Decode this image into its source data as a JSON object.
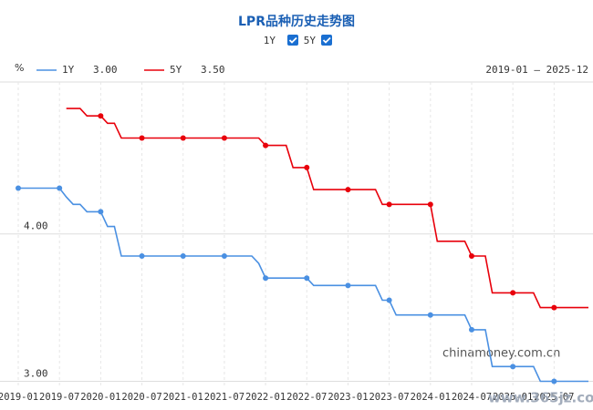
{
  "chart_data": {
    "type": "line",
    "title": "LPR品种历史走势图",
    "toggles": [
      "1Y",
      "5Y"
    ],
    "y_unit": "%",
    "date_range": "2019-01 – 2025-12",
    "watermarks": [
      "chinamoney.com.cn",
      "www.365jz.com"
    ],
    "x": [
      "2019-01",
      "2019-02",
      "2019-03",
      "2019-04",
      "2019-05",
      "2019-06",
      "2019-07",
      "2019-08",
      "2019-09",
      "2019-10",
      "2019-11",
      "2019-12",
      "2020-01",
      "2020-02",
      "2020-03",
      "2020-04",
      "2020-05",
      "2020-06",
      "2020-07",
      "2020-08",
      "2020-09",
      "2020-10",
      "2020-11",
      "2020-12",
      "2021-01",
      "2021-02",
      "2021-03",
      "2021-04",
      "2021-05",
      "2021-06",
      "2021-07",
      "2021-08",
      "2021-09",
      "2021-10",
      "2021-11",
      "2021-12",
      "2022-01",
      "2022-02",
      "2022-03",
      "2022-04",
      "2022-05",
      "2022-06",
      "2022-07",
      "2022-08",
      "2022-09",
      "2022-10",
      "2022-11",
      "2022-12",
      "2023-01",
      "2023-02",
      "2023-03",
      "2023-04",
      "2023-05",
      "2023-06",
      "2023-07",
      "2023-08",
      "2023-09",
      "2023-10",
      "2023-11",
      "2023-12",
      "2024-01",
      "2024-02",
      "2024-03",
      "2024-04",
      "2024-05",
      "2024-06",
      "2024-07",
      "2024-08",
      "2024-09",
      "2024-10",
      "2024-11",
      "2024-12",
      "2025-01",
      "2025-02",
      "2025-03",
      "2025-04",
      "2025-05",
      "2025-06",
      "2025-07",
      "2025-08",
      "2025-09",
      "2025-10",
      "2025-11",
      "2025-12"
    ],
    "series": [
      {
        "name": "1Y",
        "color": "#4a90e2",
        "legend_value": "3.00",
        "values": [
          4.31,
          4.31,
          4.31,
          4.31,
          4.31,
          4.31,
          4.31,
          4.25,
          4.2,
          4.2,
          4.15,
          4.15,
          4.15,
          4.05,
          4.05,
          3.85,
          3.85,
          3.85,
          3.85,
          3.85,
          3.85,
          3.85,
          3.85,
          3.85,
          3.85,
          3.85,
          3.85,
          3.85,
          3.85,
          3.85,
          3.85,
          3.85,
          3.85,
          3.85,
          3.85,
          3.8,
          3.7,
          3.7,
          3.7,
          3.7,
          3.7,
          3.7,
          3.7,
          3.65,
          3.65,
          3.65,
          3.65,
          3.65,
          3.65,
          3.65,
          3.65,
          3.65,
          3.65,
          3.55,
          3.55,
          3.45,
          3.45,
          3.45,
          3.45,
          3.45,
          3.45,
          3.45,
          3.45,
          3.45,
          3.45,
          3.45,
          3.35,
          3.35,
          3.35,
          3.1,
          3.1,
          3.1,
          3.1,
          3.1,
          3.1,
          3.1,
          3,
          3,
          3,
          3,
          3,
          3,
          3,
          3
        ]
      },
      {
        "name": "5Y",
        "color": "#e8000b",
        "legend_value": "3.50",
        "values": [
          null,
          null,
          null,
          null,
          null,
          null,
          null,
          4.85,
          4.85,
          4.85,
          4.8,
          4.8,
          4.8,
          4.75,
          4.75,
          4.65,
          4.65,
          4.65,
          4.65,
          4.65,
          4.65,
          4.65,
          4.65,
          4.65,
          4.65,
          4.65,
          4.65,
          4.65,
          4.65,
          4.65,
          4.65,
          4.65,
          4.65,
          4.65,
          4.65,
          4.65,
          4.6,
          4.6,
          4.6,
          4.6,
          4.45,
          4.45,
          4.45,
          4.3,
          4.3,
          4.3,
          4.3,
          4.3,
          4.3,
          4.3,
          4.3,
          4.3,
          4.3,
          4.2,
          4.2,
          4.2,
          4.2,
          4.2,
          4.2,
          4.2,
          4.2,
          3.95,
          3.95,
          3.95,
          3.95,
          3.95,
          3.85,
          3.85,
          3.85,
          3.6,
          3.6,
          3.6,
          3.6,
          3.6,
          3.6,
          3.6,
          3.5,
          3.5,
          3.5,
          3.5,
          3.5,
          3.5,
          3.5,
          3.5
        ]
      }
    ],
    "xlim": [
      "2019-01",
      "2025-12"
    ],
    "xticks": [
      "2019-01",
      "2019-07",
      "2020-01",
      "2020-07",
      "2021-01",
      "2021-07",
      "2022-01",
      "2022-07",
      "2023-01",
      "2023-07",
      "2024-01",
      "2024-07",
      "2025-01",
      "2025-07"
    ],
    "ylim": [
      2.96,
      5.03
    ],
    "yticks": [
      {
        "value": 3,
        "label": "3.00"
      },
      {
        "value": 4,
        "label": "4.00"
      }
    ],
    "grid": true
  }
}
